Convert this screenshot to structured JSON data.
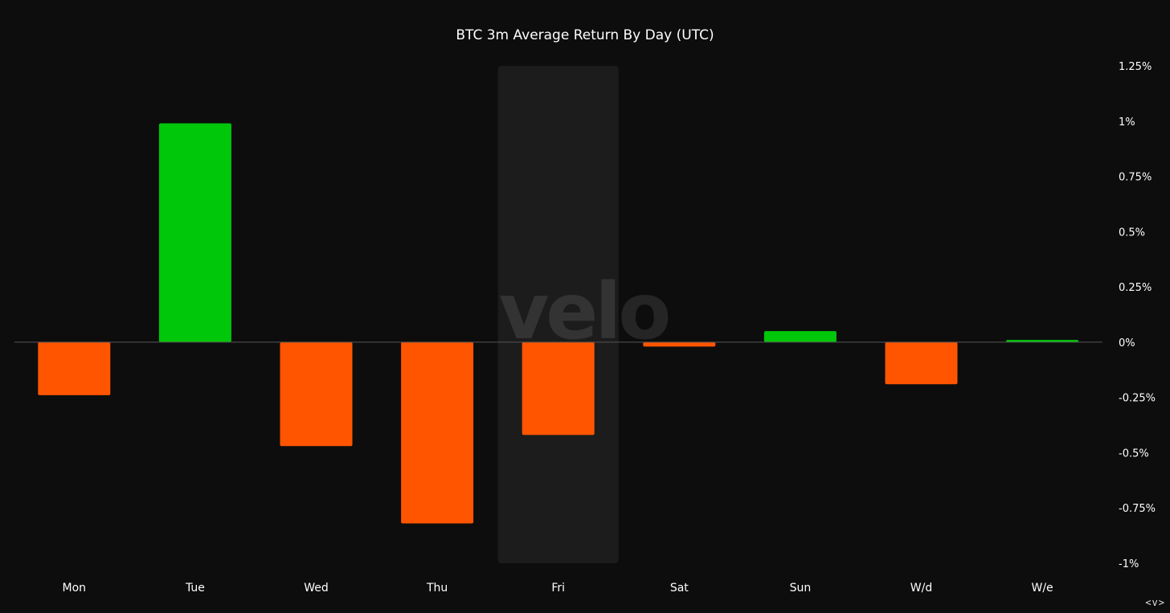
{
  "watermark": "velo",
  "nav": {
    "label": "<v>"
  },
  "colors": {
    "background": "#0d0d0d",
    "positive": "#00c70a",
    "negative": "#ff5500",
    "highlight": "#1c1c1c",
    "zero_line": "#555555",
    "text": "#ffffff"
  },
  "chart_data": {
    "type": "bar",
    "title": "BTC 3m Average Return By Day (UTC)",
    "xlabel": "",
    "ylabel": "",
    "categories": [
      "Mon",
      "Tue",
      "Wed",
      "Thu",
      "Fri",
      "Sat",
      "Sun",
      "W/d",
      "W/e"
    ],
    "values": [
      -0.24,
      0.99,
      -0.47,
      -0.82,
      -0.42,
      -0.02,
      0.05,
      -0.19,
      0.01
    ],
    "ylim": [
      -1,
      1.25
    ],
    "yticks": [
      1.25,
      1,
      0.75,
      0.5,
      0.25,
      0,
      -0.25,
      -0.5,
      -0.75,
      -1
    ],
    "ytick_labels": [
      "1.25%",
      "1%",
      "0.75%",
      "0.5%",
      "0.25%",
      "0%",
      "-0.25%",
      "-0.5%",
      "-0.75%",
      "-1%"
    ],
    "highlighted_category": "Fri",
    "grid": false,
    "axis_position": "right"
  }
}
